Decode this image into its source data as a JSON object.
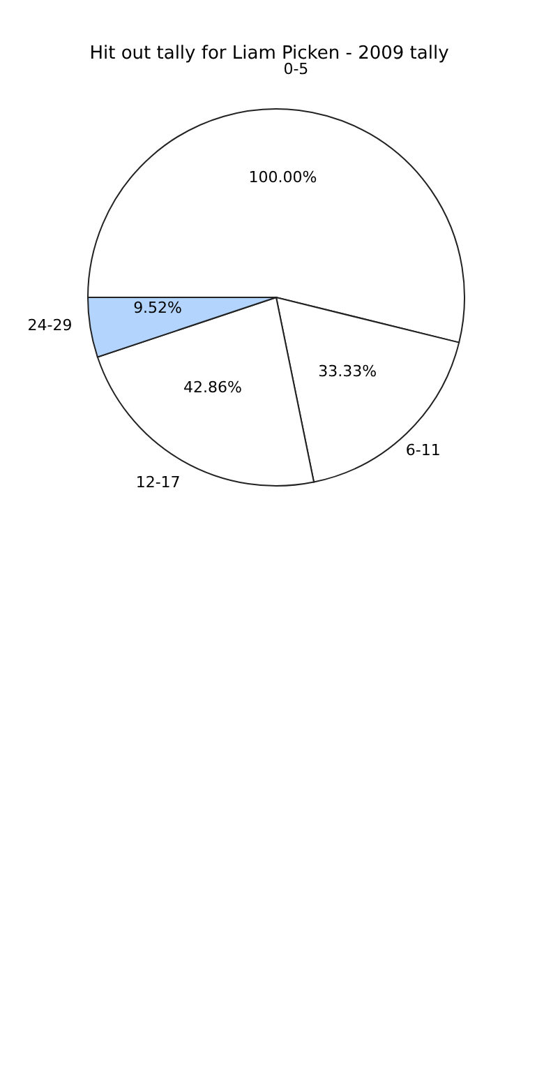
{
  "chart_data": {
    "type": "pie",
    "title": "Hit out tally for Liam Picken - 2009 tally",
    "categories": [
      "0-5",
      "6-11",
      "12-17",
      "24-29"
    ],
    "values": [
      100,
      33.33,
      42.86,
      9.52
    ],
    "colors": [
      "#ffffff",
      "#ffffff",
      "#ffffff",
      "#b3d4fc"
    ],
    "value_labels": [
      "100.00%",
      "33.33%",
      "42.86%",
      "9.52%"
    ]
  }
}
